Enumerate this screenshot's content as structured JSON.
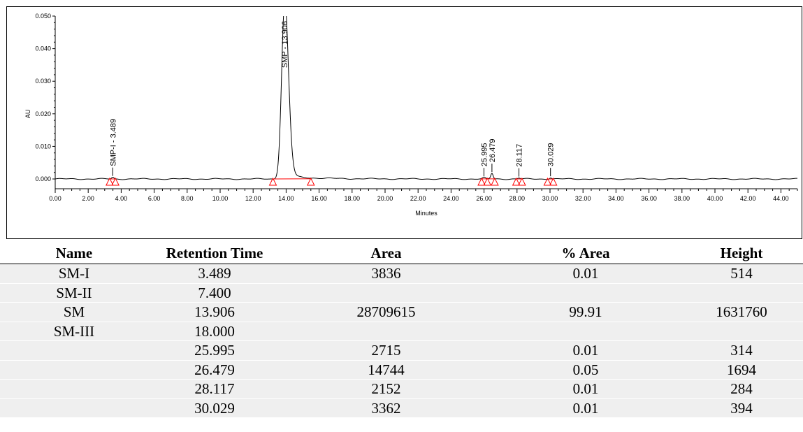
{
  "chart_data": {
    "type": "line",
    "xlabel": "Minutes",
    "ylabel": "AU",
    "xlim": [
      0,
      45
    ],
    "ylim": [
      -0.003,
      0.05
    ],
    "x_ticks": [
      "0.00",
      "2.00",
      "4.00",
      "6.00",
      "8.00",
      "10.00",
      "12.00",
      "14.00",
      "16.00",
      "18.00",
      "20.00",
      "22.00",
      "24.00",
      "26.00",
      "28.00",
      "30.00",
      "32.00",
      "34.00",
      "36.00",
      "38.00",
      "40.00",
      "42.00",
      "44.00"
    ],
    "y_ticks": [
      "0.000",
      "0.010",
      "0.020",
      "0.030",
      "0.040",
      "0.050"
    ],
    "peaks": [
      {
        "label": "SMP-I - 3.489",
        "rt": 3.489,
        "height": 0.0005
      },
      {
        "label": "SMP - 13.906",
        "rt": 13.906,
        "height": 0.0532
      },
      {
        "label": "25.995",
        "rt": 25.995,
        "height": 0.0004
      },
      {
        "label": "26.479",
        "rt": 26.479,
        "height": 0.0017
      },
      {
        "label": "28.117",
        "rt": 28.117,
        "height": 0.0003
      },
      {
        "label": "30.029",
        "rt": 30.029,
        "height": 0.0004
      }
    ],
    "integration_markers": [
      3.3,
      3.65,
      13.2,
      15.5,
      25.85,
      26.2,
      26.65,
      27.95,
      28.3,
      29.85,
      30.2
    ],
    "colors": {
      "trace": "#000000",
      "baseline": "#ff0000",
      "marker": "#ff0000"
    }
  },
  "table": {
    "headers": {
      "name": "Name",
      "rt": "Retention Time",
      "area": "Area",
      "parea": "% Area",
      "height": "Height"
    },
    "rows": [
      {
        "name": "SM-I",
        "rt": "3.489",
        "area": "3836",
        "parea": "0.01",
        "height": "514"
      },
      {
        "name": "SM-II",
        "rt": "7.400",
        "area": "",
        "parea": "",
        "height": ""
      },
      {
        "name": "SM",
        "rt": "13.906",
        "area": "28709615",
        "parea": "99.91",
        "height": "1631760"
      },
      {
        "name": "SM-III",
        "rt": "18.000",
        "area": "",
        "parea": "",
        "height": ""
      },
      {
        "name": "",
        "rt": "25.995",
        "area": "2715",
        "parea": "0.01",
        "height": "314"
      },
      {
        "name": "",
        "rt": "26.479",
        "area": "14744",
        "parea": "0.05",
        "height": "1694"
      },
      {
        "name": "",
        "rt": "28.117",
        "area": "2152",
        "parea": "0.01",
        "height": "284"
      },
      {
        "name": "",
        "rt": "30.029",
        "area": "3362",
        "parea": "0.01",
        "height": "394"
      }
    ]
  }
}
